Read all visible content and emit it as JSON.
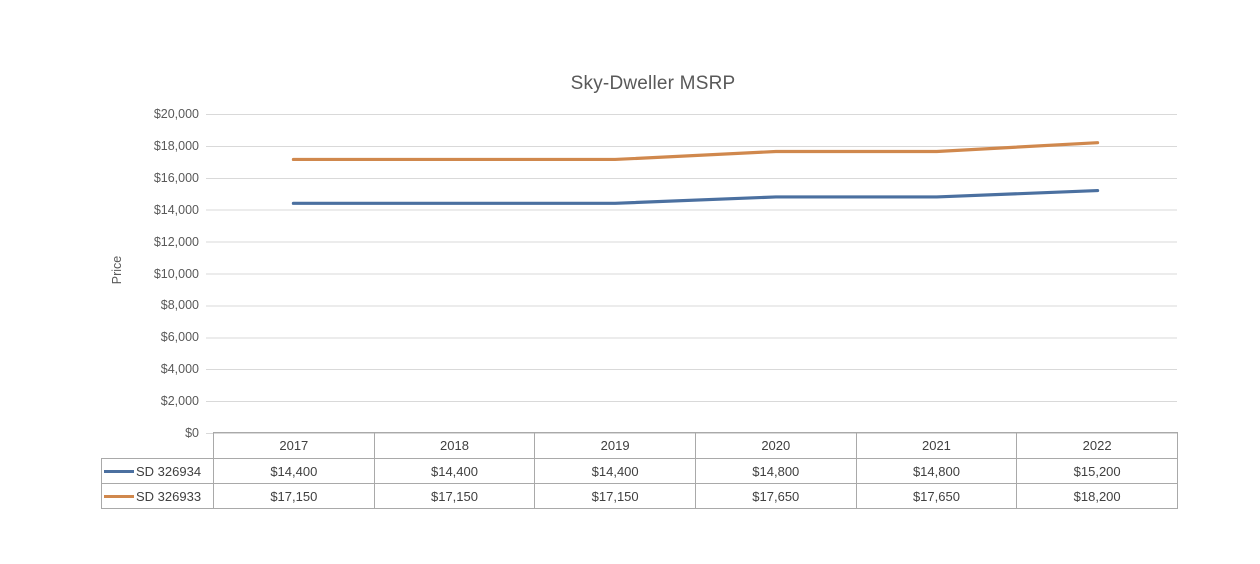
{
  "chart_data": {
    "type": "line",
    "title": "Sky-Dweller MSRP",
    "xlabel": "",
    "ylabel": "Price",
    "categories": [
      "2017",
      "2018",
      "2019",
      "2020",
      "2021",
      "2022"
    ],
    "series": [
      {
        "name": "SD 326934",
        "color": "#4b70a0",
        "values": [
          14400,
          14400,
          14400,
          14800,
          14800,
          15200
        ],
        "values_formatted": [
          "$14,400",
          "$14,400",
          "$14,400",
          "$14,800",
          "$14,800",
          "$15,200"
        ]
      },
      {
        "name": "SD 326933",
        "color": "#d0884d",
        "values": [
          17150,
          17150,
          17150,
          17650,
          17650,
          18200
        ],
        "values_formatted": [
          "$17,150",
          "$17,150",
          "$17,150",
          "$17,650",
          "$17,650",
          "$18,200"
        ]
      }
    ],
    "ylim": [
      0,
      20000
    ],
    "ytick_interval": 2000,
    "ytick_labels_bottom_up": [
      "$0",
      "$2,000",
      "$4,000",
      "$6,000",
      "$8,000",
      "$10,000",
      "$12,000",
      "$14,000",
      "$16,000",
      "$18,000",
      "$20,000"
    ],
    "grid": "horizontal-only",
    "legend_position": "data-table-keys"
  },
  "colors": {
    "background": "#ffffff",
    "gridline": "#d9d9d9",
    "table_border": "#a9a9a9",
    "axis_text": "#595959",
    "table_text": "#404040"
  }
}
